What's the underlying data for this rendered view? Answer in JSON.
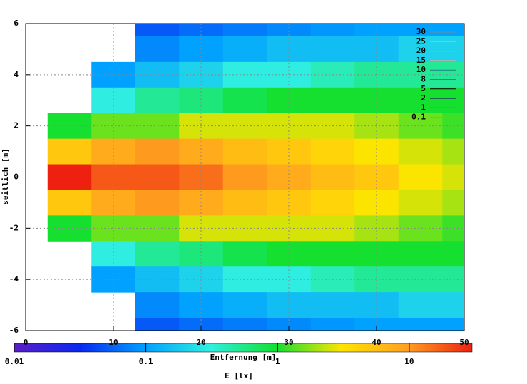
{
  "chart_data": {
    "type": "heatmap",
    "xlabel": "Entfernung [m]",
    "ylabel": "seitlich [m]",
    "zlabel": "E [lx]",
    "x": [
      0,
      5,
      10,
      15,
      20,
      25,
      30,
      35,
      40,
      45,
      50
    ],
    "y": [
      6,
      5,
      4,
      3,
      2,
      1,
      0,
      -1,
      -2,
      -3,
      -4,
      -5,
      -6
    ],
    "z": [
      [
        null,
        null,
        null,
        0.05,
        0.06,
        0.07,
        0.08,
        0.09,
        0.1,
        0.1,
        0.1
      ],
      [
        null,
        null,
        null,
        0.08,
        0.1,
        0.12,
        0.15,
        0.15,
        0.15,
        0.2,
        0.2
      ],
      [
        null,
        null,
        0.1,
        0.15,
        0.2,
        0.3,
        0.3,
        0.4,
        0.5,
        0.5,
        0.5
      ],
      [
        null,
        null,
        0.3,
        0.5,
        0.6,
        0.8,
        1,
        1,
        1,
        1,
        1
      ],
      [
        null,
        1,
        1.5,
        1.5,
        2.5,
        2.5,
        2.5,
        2.5,
        2,
        1.5,
        1.2
      ],
      [
        null,
        5,
        8,
        10,
        8,
        6,
        5,
        4,
        3,
        2.5,
        2
      ],
      [
        null,
        30,
        18,
        18,
        15,
        10,
        8,
        6,
        5,
        3,
        2.5
      ],
      [
        null,
        5,
        8,
        10,
        8,
        6,
        5,
        4,
        3,
        2.5,
        2
      ],
      [
        null,
        1,
        1.5,
        1.5,
        2.5,
        2.5,
        2.5,
        2.5,
        2,
        1.5,
        1.2
      ],
      [
        null,
        null,
        0.3,
        0.5,
        0.6,
        0.8,
        1,
        1,
        1,
        1,
        1
      ],
      [
        null,
        null,
        0.1,
        0.15,
        0.2,
        0.3,
        0.3,
        0.4,
        0.5,
        0.5,
        0.5
      ],
      [
        null,
        null,
        null,
        0.08,
        0.1,
        0.12,
        0.15,
        0.15,
        0.15,
        0.2,
        0.2
      ],
      [
        null,
        null,
        null,
        0.05,
        0.06,
        0.07,
        0.08,
        0.09,
        0.1,
        0.1,
        0.1
      ]
    ],
    "xlim": [
      0,
      50
    ],
    "xticks": [
      0,
      10,
      20,
      30,
      40,
      50
    ],
    "ylim": [
      -6,
      6
    ],
    "yticks": [
      -6,
      -4,
      -2,
      0,
      2,
      4,
      6
    ],
    "zlim": [
      0.01,
      30
    ],
    "zticks": [
      0.01,
      0.1,
      1,
      10
    ],
    "zscale": "log",
    "colors": [
      "#5a1ec8",
      "#0a28f0",
      "#00a0ff",
      "#30f0e0",
      "#10e030",
      "#ffe400",
      "#ffa020",
      "#ee2010"
    ],
    "grid": true,
    "contours": [
      {
        "level": 30,
        "color": "#7a8c8c"
      },
      {
        "level": 25,
        "color": "#e8b070"
      },
      {
        "level": 20,
        "color": "#c0d040"
      },
      {
        "level": 15,
        "color": "#f0a090"
      },
      {
        "level": 10,
        "color": "#208080"
      },
      {
        "level": 8,
        "color": "#e04010"
      },
      {
        "level": 5,
        "color": "#000000"
      },
      {
        "level": 2,
        "color": "#202060"
      },
      {
        "level": 1,
        "color": "#206020"
      },
      {
        "level": 0.1,
        "color": "#80a0c0"
      }
    ]
  }
}
